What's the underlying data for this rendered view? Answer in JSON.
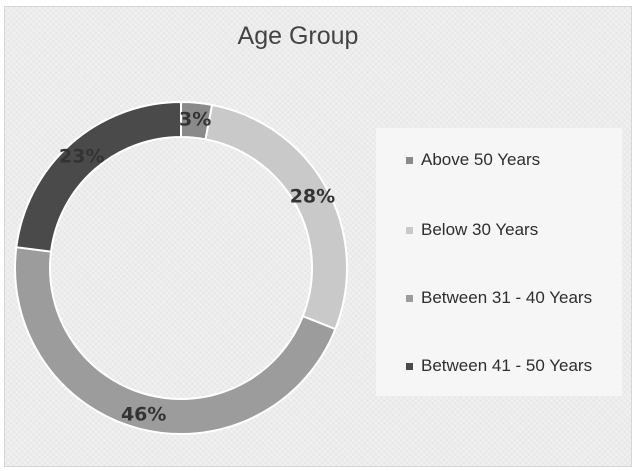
{
  "chart_data": {
    "type": "pie",
    "title": "Age Group",
    "donut": true,
    "legend_position": "right",
    "slices": [
      {
        "label": "Above 50 Years",
        "value": 3,
        "display": "3%",
        "color": "#8a8a8a"
      },
      {
        "label": "Below 30 Years",
        "value": 28,
        "display": "28%",
        "color": "#c9c9c9"
      },
      {
        "label": "Between 31 - 40 Years",
        "value": 46,
        "display": "46%",
        "color": "#9c9c9c"
      },
      {
        "label": "Between 41 - 50 Years",
        "value": 23,
        "display": "23%",
        "color": "#4a4a4a"
      }
    ]
  }
}
